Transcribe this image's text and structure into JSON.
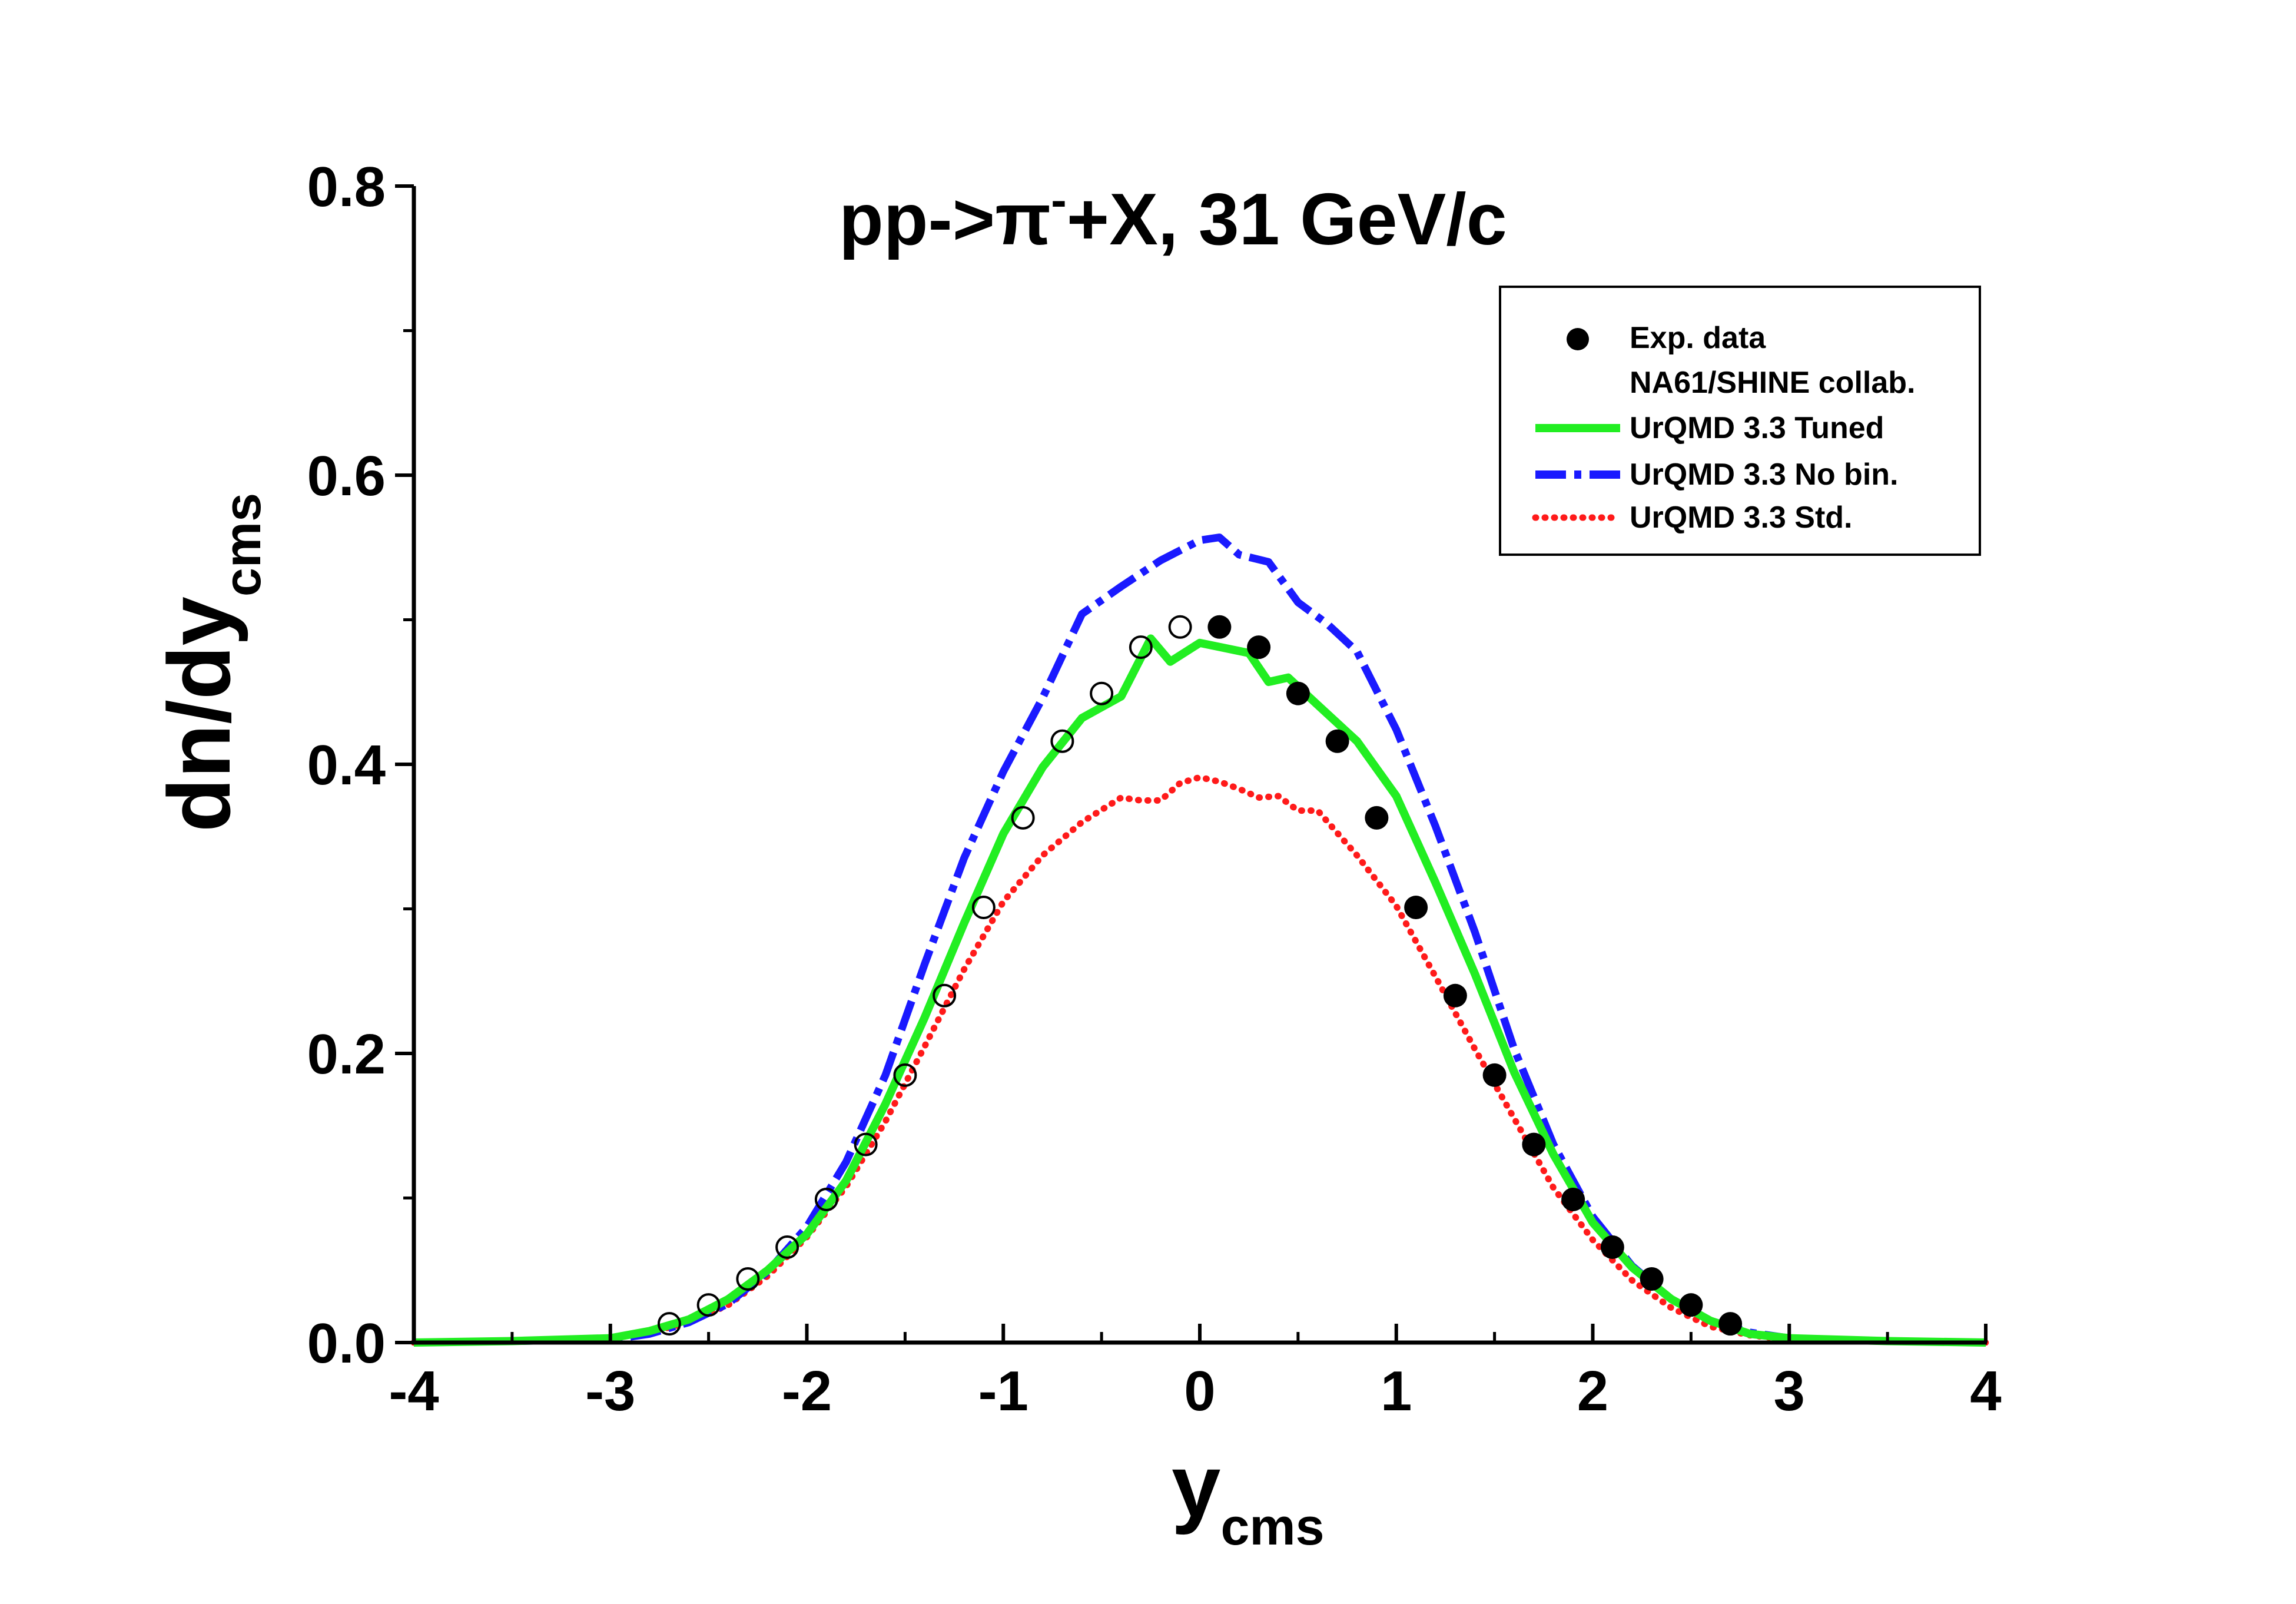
{
  "chart_data": {
    "type": "line",
    "title": {
      "main": "pp->",
      "pi": "π",
      "superscript": "-",
      "rest": "+X, 31 GeV/c"
    },
    "xlabel": {
      "main": "y",
      "sub": "cms"
    },
    "ylabel": {
      "main": "dn/dy",
      "sub": "cms"
    },
    "xlim": [
      -4,
      4
    ],
    "ylim": [
      0,
      0.8
    ],
    "xticks": [
      {
        "value": -4,
        "label": "-4"
      },
      {
        "value": -3,
        "label": "-3"
      },
      {
        "value": -2,
        "label": "-2"
      },
      {
        "value": -1,
        "label": "-1"
      },
      {
        "value": 0,
        "label": "0"
      },
      {
        "value": 1,
        "label": "1"
      },
      {
        "value": 2,
        "label": "2"
      },
      {
        "value": 3,
        "label": "3"
      },
      {
        "value": 4,
        "label": "4"
      }
    ],
    "yticks": [
      {
        "value": 0.0,
        "label": "0.0"
      },
      {
        "value": 0.2,
        "label": "0.2"
      },
      {
        "value": 0.4,
        "label": "0.4"
      },
      {
        "value": 0.6,
        "label": "0.6"
      },
      {
        "value": 0.8,
        "label": "0.8"
      }
    ],
    "legend": {
      "placement": "top-right",
      "entries": [
        {
          "label": "Exp. data",
          "style": "marker"
        },
        {
          "label": "NA61/SHINE collab.",
          "style": "none"
        },
        {
          "label": "UrQMD 3.3 Tuned",
          "style": "solid",
          "color": "#22ee22"
        },
        {
          "label": "UrQMD 3.3 No bin.",
          "style": "dashdot",
          "color": "#1a1aff"
        },
        {
          "label": "UrQMD 3.3 Std.",
          "style": "dotted",
          "color": "#ff1a1a"
        }
      ]
    },
    "exp_data_measured": {
      "name": "Exp. data (filled)",
      "x": [
        0.1,
        0.3,
        0.5,
        0.7,
        0.9,
        1.1,
        1.3,
        1.5,
        1.7,
        1.9,
        2.1,
        2.3,
        2.5,
        2.7
      ],
      "y": [
        0.495,
        0.481,
        0.449,
        0.416,
        0.363,
        0.301,
        0.24,
        0.185,
        0.137,
        0.099,
        0.066,
        0.044,
        0.026,
        0.013
      ]
    },
    "exp_data_reflected": {
      "name": "Exp. data (open, reflected)",
      "x": [
        -0.1,
        -0.3,
        -0.5,
        -0.7,
        -0.9,
        -1.1,
        -1.3,
        -1.5,
        -1.7,
        -1.9,
        -2.1,
        -2.3,
        -2.5,
        -2.7
      ],
      "y": [
        0.495,
        0.481,
        0.449,
        0.416,
        0.363,
        0.301,
        0.24,
        0.185,
        0.137,
        0.099,
        0.066,
        0.044,
        0.026,
        0.013
      ]
    },
    "series": [
      {
        "name": "UrQMD 3.3 Tuned",
        "color": "#22ee22",
        "style": "solid",
        "x": [
          -4.0,
          -3.5,
          -3.0,
          -2.8,
          -2.6,
          -2.4,
          -2.2,
          -2.0,
          -1.8,
          -1.6,
          -1.4,
          -1.2,
          -1.0,
          -0.8,
          -0.6,
          -0.4,
          -0.25,
          -0.15,
          0.0,
          0.25,
          0.35,
          0.45,
          0.6,
          0.8,
          1.0,
          1.2,
          1.4,
          1.6,
          1.8,
          2.0,
          2.2,
          2.4,
          2.6,
          2.8,
          3.0,
          3.5,
          4.0
        ],
        "y": [
          0.0,
          0.001,
          0.003,
          0.008,
          0.016,
          0.03,
          0.05,
          0.075,
          0.112,
          0.165,
          0.225,
          0.29,
          0.352,
          0.398,
          0.432,
          0.447,
          0.487,
          0.471,
          0.484,
          0.477,
          0.457,
          0.46,
          0.441,
          0.416,
          0.378,
          0.318,
          0.255,
          0.187,
          0.13,
          0.083,
          0.052,
          0.03,
          0.015,
          0.006,
          0.003,
          0.001,
          0.0
        ]
      },
      {
        "name": "UrQMD 3.3 No bin.",
        "color": "#1a1aff",
        "style": "dashdot",
        "x": [
          -4.0,
          -3.5,
          -3.0,
          -2.8,
          -2.6,
          -2.4,
          -2.2,
          -2.0,
          -1.8,
          -1.6,
          -1.4,
          -1.2,
          -1.0,
          -0.8,
          -0.6,
          -0.4,
          -0.2,
          0.0,
          0.1,
          0.2,
          0.35,
          0.5,
          0.65,
          0.8,
          1.0,
          1.2,
          1.4,
          1.6,
          1.8,
          2.0,
          2.2,
          2.4,
          2.6,
          2.8,
          3.0,
          3.5,
          4.0
        ],
        "y": [
          0.0,
          0.001,
          0.002,
          0.006,
          0.014,
          0.027,
          0.049,
          0.08,
          0.125,
          0.185,
          0.262,
          0.335,
          0.395,
          0.446,
          0.504,
          0.523,
          0.541,
          0.555,
          0.557,
          0.545,
          0.54,
          0.512,
          0.497,
          0.478,
          0.424,
          0.357,
          0.284,
          0.203,
          0.137,
          0.087,
          0.053,
          0.03,
          0.015,
          0.007,
          0.003,
          0.001,
          0.0
        ]
      },
      {
        "name": "UrQMD 3.3 Std.",
        "color": "#ff1a1a",
        "style": "dotted",
        "x": [
          -4.0,
          -3.5,
          -3.0,
          -2.8,
          -2.6,
          -2.4,
          -2.2,
          -2.0,
          -1.8,
          -1.6,
          -1.4,
          -1.2,
          -1.0,
          -0.8,
          -0.6,
          -0.4,
          -0.3,
          -0.2,
          -0.1,
          0.0,
          0.1,
          0.2,
          0.3,
          0.4,
          0.5,
          0.6,
          0.8,
          1.0,
          1.2,
          1.4,
          1.6,
          1.8,
          2.0,
          2.2,
          2.4,
          2.6,
          2.8,
          3.0,
          3.5,
          4.0
        ],
        "y": [
          0.0,
          0.001,
          0.003,
          0.007,
          0.014,
          0.026,
          0.046,
          0.073,
          0.108,
          0.153,
          0.205,
          0.258,
          0.305,
          0.337,
          0.36,
          0.377,
          0.375,
          0.375,
          0.387,
          0.391,
          0.388,
          0.383,
          0.377,
          0.378,
          0.368,
          0.368,
          0.337,
          0.302,
          0.253,
          0.203,
          0.155,
          0.107,
          0.071,
          0.043,
          0.024,
          0.011,
          0.005,
          0.002,
          0.001,
          0.0
        ]
      }
    ]
  }
}
